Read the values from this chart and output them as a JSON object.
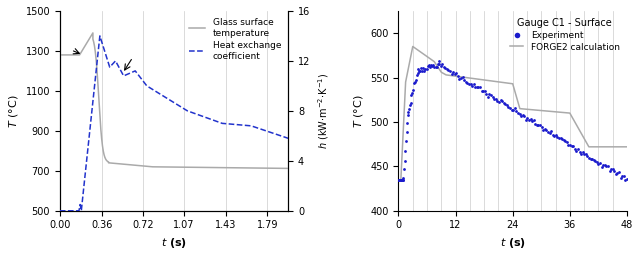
{
  "left": {
    "xlim": [
      0,
      1.97
    ],
    "xtick_vals": [
      0.0,
      0.36,
      0.72,
      1.07,
      1.43,
      1.79
    ],
    "xtick_labels": [
      "0.00",
      "0.36",
      "0.72",
      "1.07",
      "1.43",
      "1.79"
    ],
    "ylabel_left": "T (°C)",
    "ylabel_right": "h (kW·m⁻²·K⁻¹)",
    "ylim_left": [
      500,
      1500
    ],
    "yticks_left": [
      500,
      700,
      900,
      1100,
      1300,
      1500
    ],
    "ylim_right": [
      0,
      16
    ],
    "yticks_right": [
      0,
      4,
      8,
      12,
      16
    ],
    "glass_color": "#aaaaaa",
    "hec_color": "#2233cc",
    "legend_glass": "Glass surface\ntemperature",
    "legend_hec": "Heat exchange\ncoefficient",
    "vgrid_color": "#cccccc"
  },
  "right": {
    "xlim": [
      0,
      48
    ],
    "xtick_vals": [
      0,
      12,
      24,
      36,
      48
    ],
    "xtick_labels": [
      "0",
      "12",
      "24",
      "36",
      "48"
    ],
    "ylabel": "T (°C)",
    "ylim": [
      400,
      625
    ],
    "yticks": [
      400,
      450,
      500,
      550,
      600
    ],
    "exp_color": "#1a1acc",
    "calc_color": "#aaaaaa",
    "legend_title": "Gauge C1 - Surface",
    "legend_exp": "Experiment",
    "legend_calc": "FORGE2 calculation",
    "vgrid_color": "#cccccc",
    "vgrid_vals": [
      0,
      3,
      6,
      9,
      12,
      15,
      18,
      21,
      24,
      27,
      30,
      33,
      36,
      39,
      42,
      45,
      48
    ]
  }
}
